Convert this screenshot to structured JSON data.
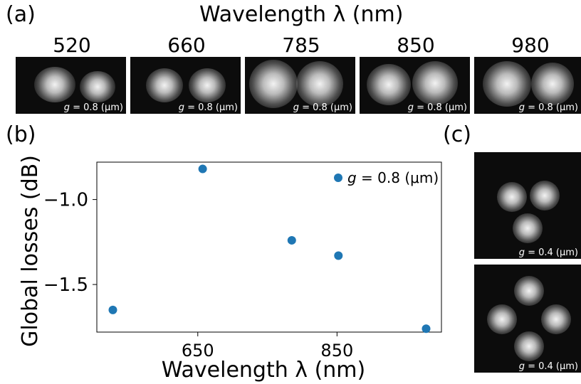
{
  "panel_labels": {
    "a": "(a)",
    "b": "(b)",
    "c": "(c)"
  },
  "panel_a": {
    "title": "Wavelength λ (nm)",
    "images": [
      {
        "wavelength": "520",
        "caption_var": "g",
        "caption_rest": " = 0.8 (μm)"
      },
      {
        "wavelength": "660",
        "caption_var": "g",
        "caption_rest": " = 0.8 (μm)"
      },
      {
        "wavelength": "785",
        "caption_var": "g",
        "caption_rest": " = 0.8 (μm)"
      },
      {
        "wavelength": "850",
        "caption_var": "g",
        "caption_rest": " = 0.8 (μm)"
      },
      {
        "wavelength": "980",
        "caption_var": "g",
        "caption_rest": " = 0.8 (μm)"
      }
    ]
  },
  "panel_c": {
    "images": [
      {
        "caption_var": "g",
        "caption_rest": " = 0.4 (μm)",
        "pattern": "three-spot"
      },
      {
        "caption_var": "g",
        "caption_rest": " = 0.4 (μm)",
        "pattern": "four-spot"
      }
    ]
  },
  "chart_data": {
    "type": "scatter",
    "title": "",
    "xlabel": "Wavelength λ (nm)",
    "ylabel": "Global losses (dB)",
    "xlim": [
      505,
      1000
    ],
    "ylim": [
      -1.78,
      -0.78
    ],
    "xticks": [
      650,
      850
    ],
    "xtick_labels": [
      "650",
      "850"
    ],
    "yticks": [
      -1.0,
      -1.5
    ],
    "ytick_labels": [
      "−1.0",
      "−1.5"
    ],
    "grid": false,
    "legend_position": "top-right",
    "color": "#1f77b4",
    "series": [
      {
        "name_var": "g",
        "name_rest": " = 0.8 (μm)",
        "x": [
          528,
          657,
          785,
          852,
          978
        ],
        "y": [
          -1.65,
          -0.82,
          -1.24,
          -1.33,
          -1.76
        ]
      }
    ]
  }
}
